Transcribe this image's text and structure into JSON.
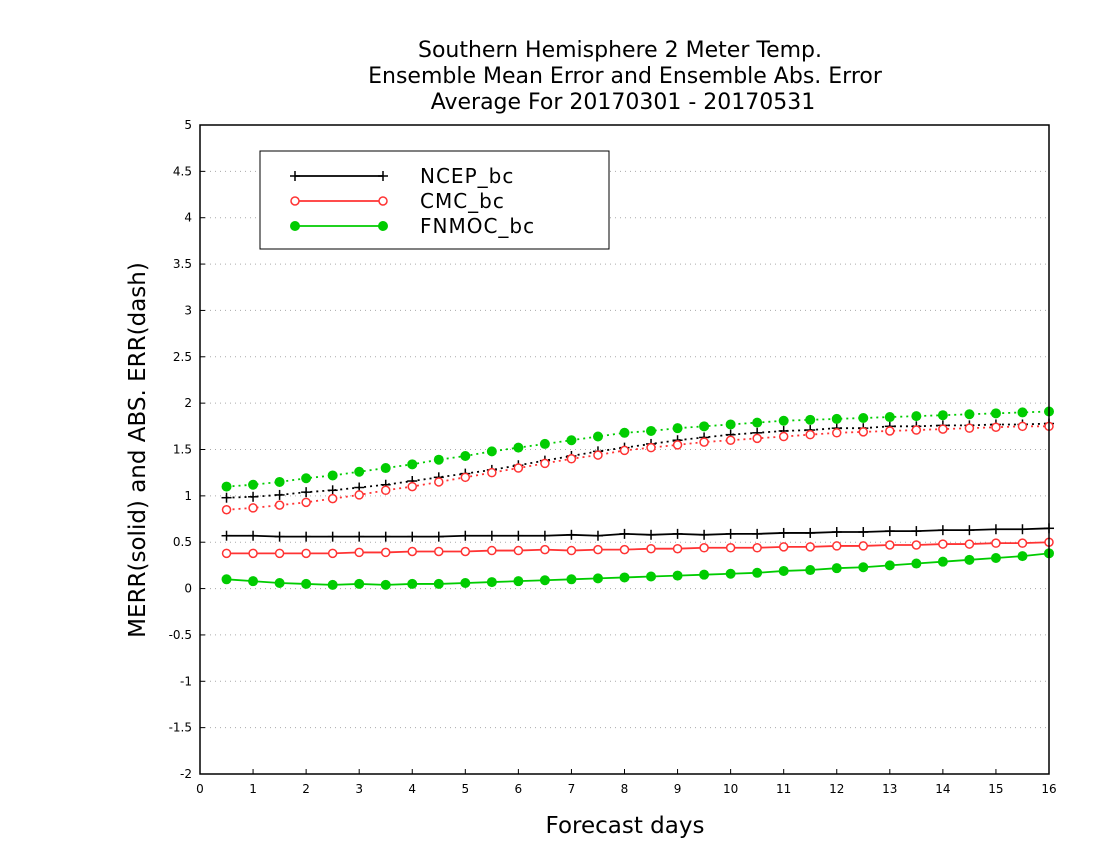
{
  "chart_data": {
    "type": "line",
    "title_lines": [
      "Southern Hemisphere 2 Meter Temp.",
      "Ensemble Mean Error and Ensemble Abs. Error",
      "Average For 20170301 - 20170531"
    ],
    "xlabel": "Forecast days",
    "ylabel": "MERR(solid) and ABS. ERR(dash)",
    "xlim": [
      0,
      16
    ],
    "ylim": [
      -2,
      5
    ],
    "xticks": [
      "0",
      "1",
      "2",
      "3",
      "4",
      "5",
      "6",
      "7",
      "8",
      "9",
      "10",
      "11",
      "12",
      "13",
      "14",
      "15",
      "16"
    ],
    "yticks": [
      "-2",
      "-1.5",
      "-1",
      "-0.5",
      "0",
      "0.5",
      "1",
      "1.5",
      "2",
      "2.5",
      "3",
      "3.5",
      "4",
      "4.5",
      "5"
    ],
    "ytick_values": [
      -2,
      -1.5,
      -1,
      -0.5,
      0,
      0.5,
      1,
      1.5,
      2,
      2.5,
      3,
      3.5,
      4,
      4.5,
      5
    ],
    "grid": "horizontal dotted",
    "legend_position": "top-left",
    "x": [
      0.5,
      1,
      1.5,
      2,
      2.5,
      3,
      3.5,
      4,
      4.5,
      5,
      5.5,
      6,
      6.5,
      7,
      7.5,
      8,
      8.5,
      9,
      9.5,
      10,
      10.5,
      11,
      11.5,
      12,
      12.5,
      13,
      13.5,
      14,
      14.5,
      15,
      15.5,
      16
    ],
    "series": [
      {
        "name": "NCEP_bc",
        "color": "#000000",
        "marker": "plus",
        "merr": [
          0.57,
          0.57,
          0.56,
          0.56,
          0.56,
          0.56,
          0.56,
          0.56,
          0.56,
          0.57,
          0.57,
          0.57,
          0.57,
          0.58,
          0.57,
          0.59,
          0.58,
          0.59,
          0.58,
          0.59,
          0.59,
          0.6,
          0.6,
          0.61,
          0.61,
          0.62,
          0.62,
          0.63,
          0.63,
          0.64,
          0.64,
          0.65
        ],
        "abs_err": [
          0.98,
          0.99,
          1.01,
          1.04,
          1.06,
          1.09,
          1.12,
          1.16,
          1.2,
          1.24,
          1.28,
          1.33,
          1.38,
          1.43,
          1.48,
          1.52,
          1.56,
          1.6,
          1.63,
          1.66,
          1.68,
          1.7,
          1.71,
          1.73,
          1.73,
          1.75,
          1.75,
          1.76,
          1.76,
          1.77,
          1.77,
          1.78
        ]
      },
      {
        "name": "CMC_bc",
        "color": "#ff3333",
        "marker": "open-circle",
        "merr": [
          0.38,
          0.38,
          0.38,
          0.38,
          0.38,
          0.39,
          0.39,
          0.4,
          0.4,
          0.4,
          0.41,
          0.41,
          0.42,
          0.41,
          0.42,
          0.42,
          0.43,
          0.43,
          0.44,
          0.44,
          0.44,
          0.45,
          0.45,
          0.46,
          0.46,
          0.47,
          0.47,
          0.48,
          0.48,
          0.49,
          0.49,
          0.5
        ],
        "abs_err": [
          0.85,
          0.87,
          0.9,
          0.93,
          0.97,
          1.01,
          1.06,
          1.1,
          1.15,
          1.2,
          1.25,
          1.3,
          1.35,
          1.4,
          1.44,
          1.49,
          1.52,
          1.55,
          1.58,
          1.6,
          1.62,
          1.64,
          1.66,
          1.68,
          1.69,
          1.7,
          1.71,
          1.72,
          1.73,
          1.74,
          1.75,
          1.75
        ]
      },
      {
        "name": "FNMOC_bc",
        "color": "#00cc00",
        "marker": "filled-circle",
        "merr": [
          0.1,
          0.08,
          0.06,
          0.05,
          0.04,
          0.05,
          0.04,
          0.05,
          0.05,
          0.06,
          0.07,
          0.08,
          0.09,
          0.1,
          0.11,
          0.12,
          0.13,
          0.14,
          0.15,
          0.16,
          0.17,
          0.19,
          0.2,
          0.22,
          0.23,
          0.25,
          0.27,
          0.29,
          0.31,
          0.33,
          0.35,
          0.38
        ],
        "abs_err": [
          1.1,
          1.12,
          1.15,
          1.19,
          1.22,
          1.26,
          1.3,
          1.34,
          1.39,
          1.43,
          1.48,
          1.52,
          1.56,
          1.6,
          1.64,
          1.68,
          1.7,
          1.73,
          1.75,
          1.77,
          1.79,
          1.81,
          1.82,
          1.83,
          1.84,
          1.85,
          1.86,
          1.87,
          1.88,
          1.89,
          1.9,
          1.91
        ]
      }
    ]
  }
}
